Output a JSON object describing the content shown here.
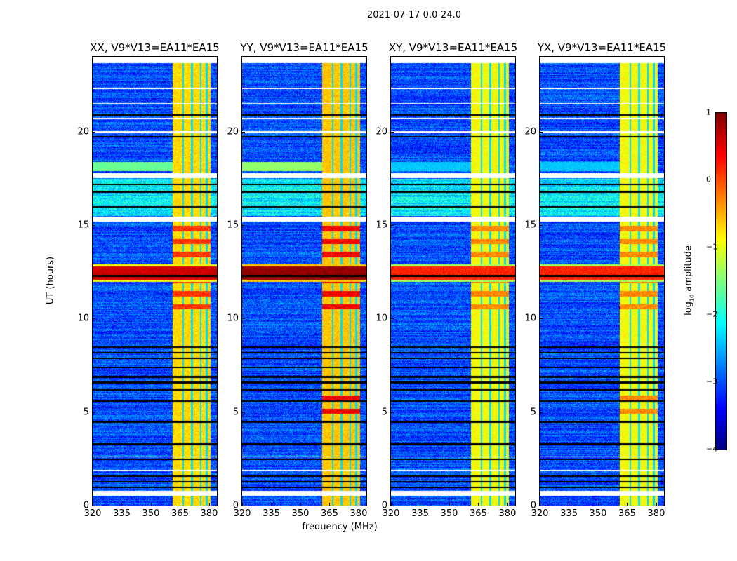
{
  "chart_data": {
    "type": "heatmap",
    "title": "2021-07-17 0.0-24.0",
    "xlabel": "frequency (MHz)",
    "ylabel": "UT (hours)",
    "xlim": [
      320,
      384
    ],
    "ylim": [
      0,
      24
    ],
    "xticks": [
      "320",
      "335",
      "350",
      "365",
      "380"
    ],
    "xtick_values": [
      320,
      335,
      350,
      365,
      380
    ],
    "yticks": [
      "0",
      "5",
      "10",
      "15",
      "20"
    ],
    "ytick_values": [
      0,
      5,
      10,
      15,
      20
    ],
    "colorbar": {
      "label_main": "log",
      "label_sub": "10",
      "label_rest": " amplitude",
      "colormap": "jet",
      "range": [
        -4,
        1
      ],
      "ticks": [
        "1",
        "0",
        "−1",
        "−2",
        "−3",
        "−4"
      ],
      "tick_values": [
        1,
        0,
        -1,
        -2,
        -3,
        -4
      ]
    },
    "panels": [
      {
        "title": "XX, V9*V13=EA11*EA15",
        "rfi_level": -0.7,
        "hot_level": 0.1,
        "green_band": -1.6
      },
      {
        "title": "YY, V9*V13=EA11*EA15",
        "rfi_level": -0.6,
        "hot_level": 0.4,
        "green_band": -1.4
      },
      {
        "title": "XY, V9*V13=EA11*EA15",
        "rfi_level": -0.9,
        "hot_level": -0.3,
        "green_band": -2.4
      },
      {
        "title": "YX, V9*V13=EA11*EA15",
        "rfi_level": -0.9,
        "hot_level": -0.3,
        "green_band": -2.4
      }
    ],
    "background_level": -3.0,
    "rfi_band_mhz": [
      361,
      380.5
    ],
    "rfi_notch_mhz": [
      366.5,
      371,
      375.5,
      378.5
    ],
    "strong_rfi_hours": [
      12.0,
      12.9
    ],
    "flagged_hours": [
      [
        0.55,
        0.8
      ],
      [
        1.85,
        1.95
      ],
      [
        2.6,
        2.65
      ],
      [
        15.2,
        15.45
      ],
      [
        17.55,
        17.8
      ],
      [
        19.95,
        20.05
      ],
      [
        20.7,
        20.75
      ],
      [
        21.5,
        21.55
      ],
      [
        22.3,
        22.35
      ],
      [
        23.7,
        24
      ]
    ],
    "dropout_hours": [
      1.0,
      1.3,
      1.6,
      2.5,
      3.3,
      4.5,
      5.6,
      6.2,
      6.6,
      6.9,
      7.4,
      7.9,
      8.2,
      8.5,
      12.3,
      16.0,
      16.8,
      17.2,
      19.75,
      20.9
    ]
  }
}
